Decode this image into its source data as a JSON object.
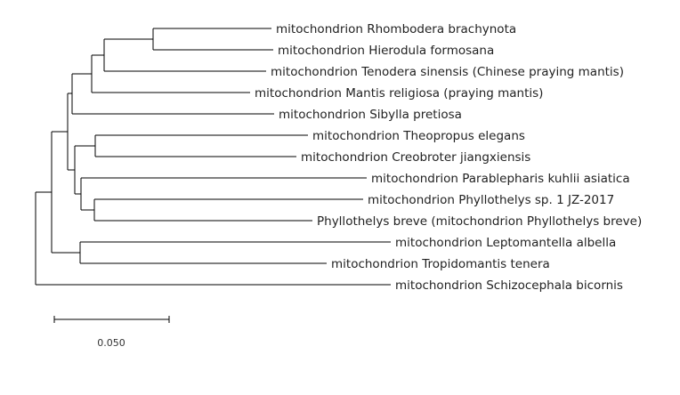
{
  "tree": {
    "taxa": [
      "mitochondrion Rhombodera brachynota",
      "mitochondrion Hierodula formosana",
      "mitochondrion Tenodera sinensis (Chinese praying mantis)",
      "mitochondrion Mantis religiosa (praying mantis)",
      "mitochondrion Sibylla pretiosa",
      "mitochondrion Theopropus elegans",
      "mitochondrion Creobroter jiangxiensis",
      "mitochondrion Parablepharis kuhlii asiatica",
      "mitochondrion Phyllothelys sp. 1 JZ-2017",
      "Phyllothelys breve (mitochondrion Phyllothelys breve)",
      "mitochondrion Leptomantella albella",
      "mitochondrion Tropidomantis tenera",
      "mitochondrion Schizocephala bicornis"
    ]
  },
  "scale_bar": {
    "label": "0.050",
    "value": 0.05
  }
}
